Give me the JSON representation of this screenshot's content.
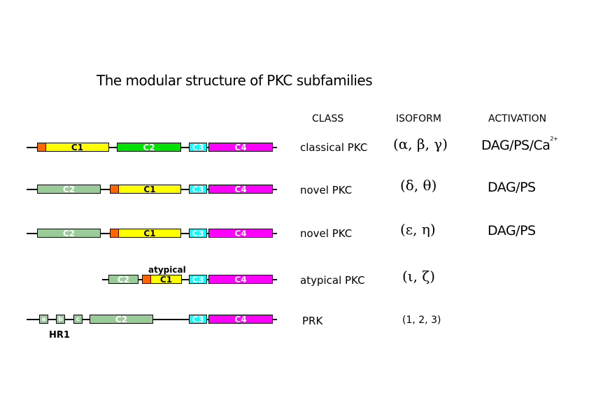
{
  "title": "The modular structure of PKC subfamilies",
  "headers": {
    "class": "CLASS",
    "isoform": "ISOFORM",
    "activation": "ACTIVATION"
  },
  "domain_labels": {
    "c1": "C1",
    "c2": "C2",
    "c3": "C3",
    "c4": "C4",
    "hr_a": "a",
    "hr_b": "b",
    "hr_c": "c"
  },
  "rows": [
    {
      "class": "classical PKC",
      "isoform": "(α, β, γ)",
      "activation": "DAG/PS/Ca",
      "activation_sup": "2+"
    },
    {
      "class": "novel PKC",
      "isoform": "(δ, θ)",
      "activation": "DAG/PS"
    },
    {
      "class": "novel PKC",
      "isoform": "(ε, η)",
      "activation": "DAG/PS"
    },
    {
      "class": "atypical PKC",
      "isoform": "(ι, ζ)",
      "activation": ""
    },
    {
      "class": "PRK",
      "isoform": "(1, 2, 3)",
      "activation": ""
    }
  ],
  "atypical_label": "atypical",
  "hr1_label": "HR1",
  "colors": {
    "c1": "#ffff00",
    "c2_classical": "#00e000",
    "c2_other": "#99cc99",
    "c3": "#00ffff",
    "c4": "#ff00ff",
    "pseudosubstrate": "#ff6600"
  }
}
